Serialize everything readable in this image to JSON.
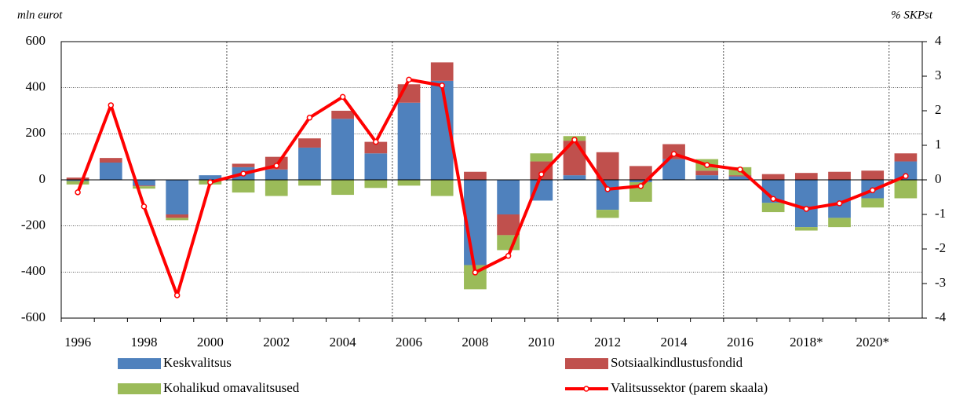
{
  "chart_data": {
    "type": "bar",
    "stacked": true,
    "y_label": "mln eurot",
    "y2_label": "% SKPst",
    "categories": [
      "1996",
      null,
      "1998",
      null,
      "2000",
      null,
      "2002",
      null,
      "2004",
      null,
      "2006",
      null,
      "2008",
      null,
      "2010",
      null,
      "2012",
      null,
      "2014",
      null,
      "2016",
      null,
      "2018*",
      null,
      "2020*",
      null
    ],
    "ylim": [
      -600,
      600
    ],
    "yticks": [
      -600,
      -400,
      -200,
      0,
      200,
      400,
      600
    ],
    "y2lim": [
      -4,
      4
    ],
    "y2ticks": [
      -4,
      -3,
      -2,
      -1,
      0,
      1,
      2,
      3,
      4
    ],
    "grid": true,
    "legend": "bottom",
    "series": [
      {
        "name": "Keskvalitsus",
        "color": "#4f81bd",
        "values": [
          -5,
          75,
          -25,
          -150,
          20,
          55,
          45,
          140,
          265,
          115,
          335,
          430,
          -370,
          -150,
          -90,
          20,
          -130,
          -10,
          90,
          20,
          15,
          -100,
          -205,
          -165,
          -80,
          80
        ]
      },
      {
        "name": "Sotsiaalkindlustusfondid",
        "color": "#c0504d",
        "values": [
          10,
          20,
          -3,
          -15,
          0,
          15,
          55,
          40,
          35,
          50,
          80,
          80,
          35,
          -90,
          80,
          150,
          120,
          60,
          65,
          20,
          5,
          25,
          30,
          35,
          40,
          35
        ]
      },
      {
        "name": "Kohalikud omavalitsused",
        "color": "#9bbb59",
        "values": [
          -15,
          0,
          -10,
          -10,
          -20,
          -55,
          -70,
          -25,
          -65,
          -35,
          -25,
          -70,
          -105,
          -65,
          35,
          20,
          -35,
          -85,
          0,
          50,
          35,
          -40,
          -15,
          -40,
          -40,
          -80
        ]
      },
      {
        "name": "Valitsussektor (parem skaala)",
        "color": "#ff0000",
        "type": "line",
        "axis": "y2",
        "values": [
          -0.36,
          2.16,
          -0.77,
          -3.34,
          -0.07,
          0.18,
          0.41,
          1.8,
          2.4,
          1.1,
          2.9,
          2.73,
          -2.68,
          -2.2,
          0.16,
          1.16,
          -0.27,
          -0.18,
          0.75,
          0.43,
          0.3,
          -0.55,
          -0.84,
          -0.68,
          -0.3,
          0.11
        ]
      }
    ]
  }
}
